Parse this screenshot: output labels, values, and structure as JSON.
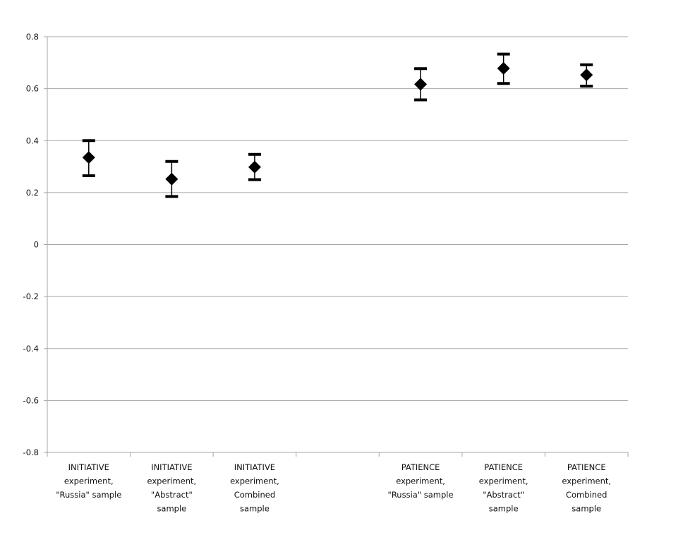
{
  "chart_data": {
    "type": "scatter",
    "title": "",
    "xlabel": "",
    "ylabel": "",
    "ylim": [
      -0.8,
      0.8
    ],
    "yticks": [
      "0.8",
      "0.6",
      "0.4",
      "0.2",
      "0",
      "-0.2",
      "-0.4",
      "-0.6",
      "-0.8"
    ],
    "ytick_values": [
      0.8,
      0.6,
      0.4,
      0.2,
      0,
      -0.2,
      -0.4,
      -0.6,
      -0.8
    ],
    "grid": true,
    "legend": "none",
    "marker": "diamond",
    "marker_color": "#000000",
    "grid_color": "#a6a6a6",
    "categories": [
      [
        "INITIATIVE",
        "experiment,",
        "\"Russia\" sample"
      ],
      [
        "INITIATIVE",
        "experiment,",
        "\"Abstract\"",
        "sample"
      ],
      [
        "INITIATIVE",
        "experiment,",
        "Combined",
        "sample"
      ],
      [],
      [
        "PATIENCE",
        "experiment,",
        "\"Russia\" sample"
      ],
      [
        "PATIENCE",
        "experiment,",
        "\"Abstract\"",
        "sample"
      ],
      [
        "PATIENCE",
        "experiment,",
        "Combined",
        "sample"
      ]
    ],
    "points": [
      {
        "category": 0,
        "value": 0.335,
        "lower": 0.265,
        "upper": 0.4
      },
      {
        "category": 1,
        "value": 0.252,
        "lower": 0.185,
        "upper": 0.32
      },
      {
        "category": 2,
        "value": 0.298,
        "lower": 0.25,
        "upper": 0.347
      },
      {
        "category": 4,
        "value": 0.617,
        "lower": 0.557,
        "upper": 0.677
      },
      {
        "category": 5,
        "value": 0.678,
        "lower": 0.62,
        "upper": 0.733
      },
      {
        "category": 6,
        "value": 0.653,
        "lower": 0.61,
        "upper": 0.692
      }
    ]
  }
}
